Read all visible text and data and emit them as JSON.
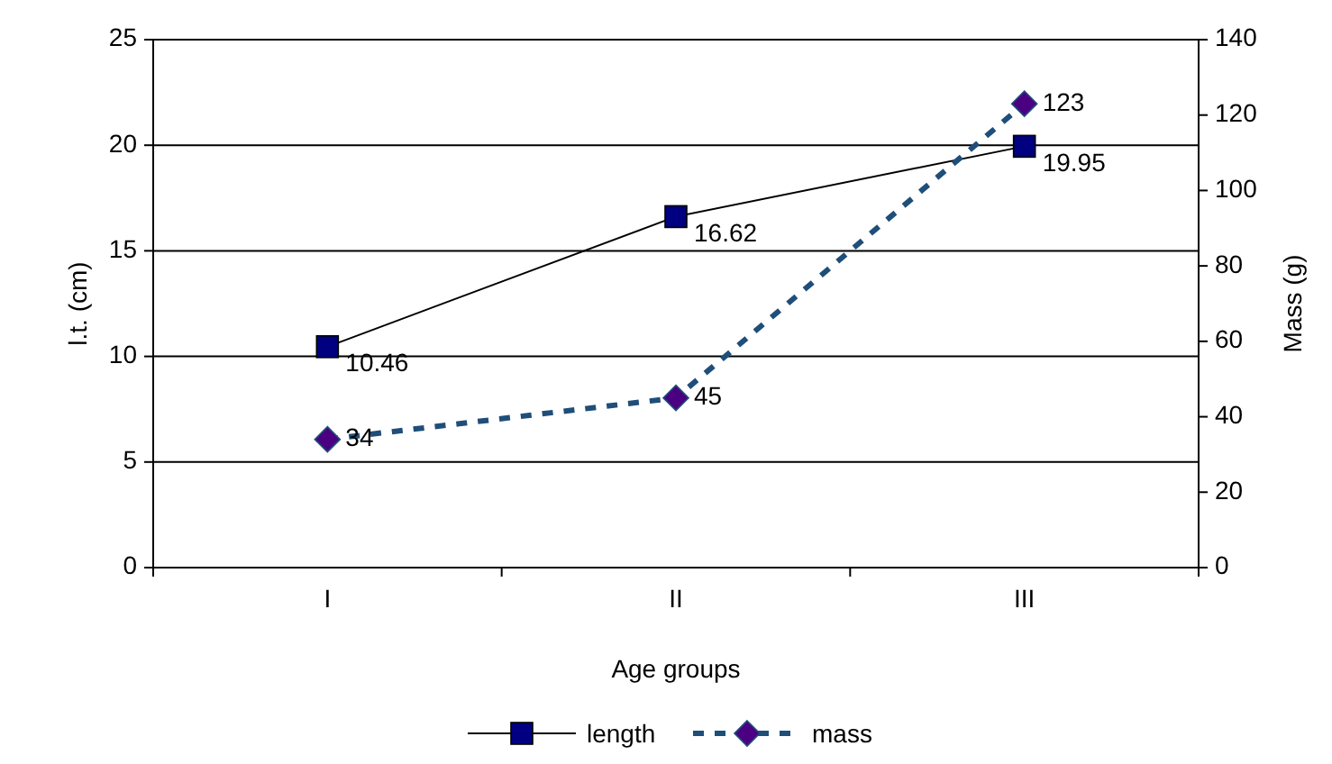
{
  "chart_data": {
    "type": "line",
    "xlabel": "Age groups",
    "ylabel": "l.t. (cm)",
    "y2label": "Mass (g)",
    "categories": [
      "I",
      "II",
      "III"
    ],
    "series": [
      {
        "name": "length",
        "color": "#000080",
        "values": [
          10.46,
          16.62,
          19.95
        ],
        "marker": "square",
        "line_style": "solid"
      },
      {
        "name": "mass",
        "color": "#1f4e79",
        "values": [
          34,
          45,
          123
        ],
        "axis": "y2",
        "marker": "diamond",
        "line_style": "dashed"
      }
    ],
    "ylim": [
      0,
      25
    ],
    "yticks": [
      0,
      5,
      10,
      15,
      20,
      25
    ],
    "y2lim": [
      0,
      140
    ],
    "y2ticks": [
      0,
      20,
      40,
      60,
      80,
      100,
      120,
      140
    ],
    "data_labels": true,
    "grid": "y",
    "legend": "bottom"
  }
}
